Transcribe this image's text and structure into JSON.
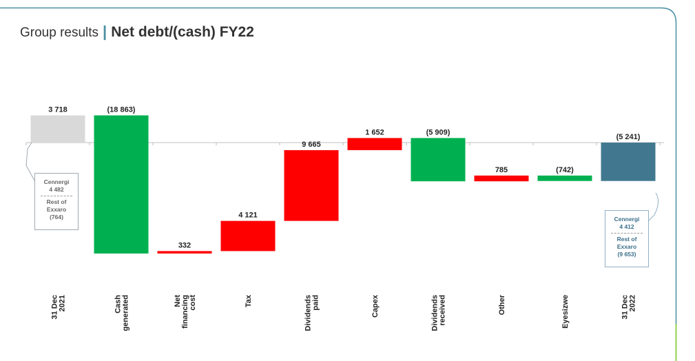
{
  "header": {
    "section": "Group results",
    "separator": "|",
    "title": "Net debt/(cash) FY22"
  },
  "colors": {
    "opening": "#d9d9d9",
    "decrease": "#00b050",
    "increase": "#ff0000",
    "closing": "#41788f",
    "accent": "#4a8fa3",
    "frame_green": "#92d050"
  },
  "chart_data": {
    "type": "bar",
    "subtype": "waterfall",
    "title": "Net debt/(cash) FY22",
    "categories": [
      "31 Dec\n2021",
      "Cash\ngenerated",
      "Net\nfinancing\ncost",
      "Tax",
      "Dividends\npaid",
      "Capex",
      "Dividends\nreceived",
      "Other",
      "Eyesizwe",
      "31 Dec\n2022"
    ],
    "values": [
      3718,
      -18863,
      332,
      4121,
      9665,
      1652,
      -5909,
      785,
      -742,
      -5241
    ],
    "value_labels": [
      "3 718",
      "(18 863)",
      "332",
      "4 121",
      "9 665",
      "1 652",
      "(5 909)",
      "785",
      "(742)",
      "(5 241)"
    ],
    "kinds": [
      "opening",
      "decrease",
      "increase",
      "increase",
      "increase",
      "increase",
      "decrease",
      "increase",
      "decrease",
      "closing"
    ],
    "zero_line": true,
    "callouts": [
      {
        "lines": [
          "Cennergi",
          "4 482",
          "Rest of",
          "Exxaro",
          "(764)"
        ]
      },
      {
        "lines": [
          "Cennergi",
          "4 412",
          "Rest of",
          "Exxaro",
          "(9 653)"
        ]
      }
    ]
  }
}
